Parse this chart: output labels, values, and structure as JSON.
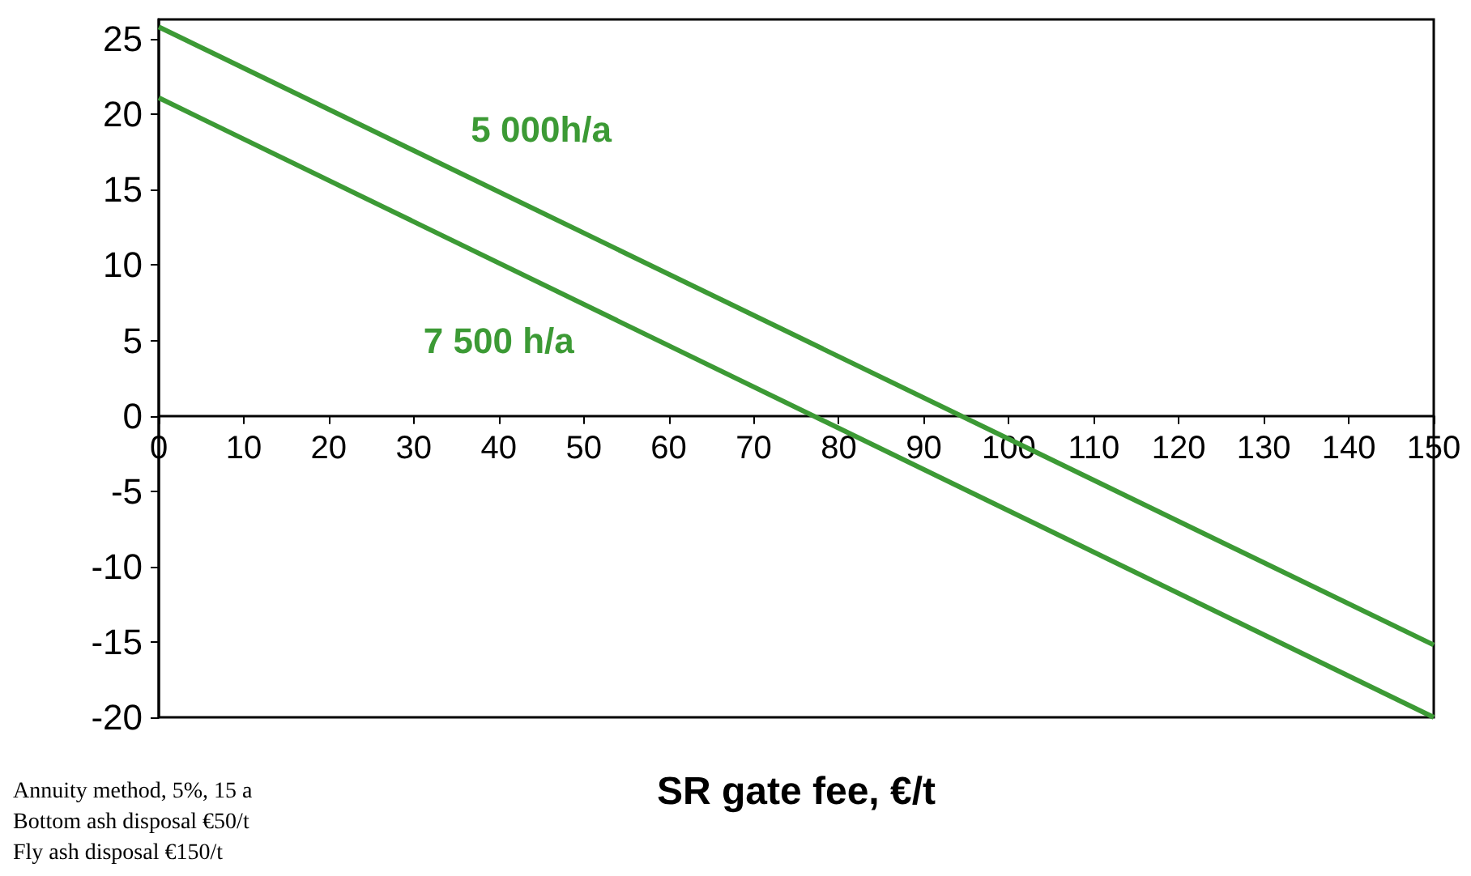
{
  "chart_data": {
    "type": "line",
    "xlabel": "SR gate fee, €/t",
    "x": [
      0,
      150
    ],
    "series": [
      {
        "name": "5 000h/a",
        "color": "#3c9a35",
        "values": [
          25.8,
          -15.2
        ]
      },
      {
        "name": "7 500 h/a",
        "color": "#3c9a35",
        "values": [
          21.1,
          -20
        ]
      }
    ],
    "xlim": [
      0,
      150
    ],
    "xticks": [
      0,
      10,
      20,
      30,
      40,
      50,
      60,
      70,
      80,
      90,
      100,
      110,
      120,
      130,
      140,
      150
    ],
    "ylim": [
      -20,
      26.3
    ],
    "yticks": [
      -20,
      -15,
      -10,
      -5,
      0,
      5,
      10,
      15,
      20,
      25
    ],
    "grid": false,
    "legend": false,
    "marker": "none",
    "line_style": "solid",
    "annotations": [
      "Annuity method, 5%, 15 a",
      "Bottom ash disposal €50/t",
      "Fly ash disposal €150/t"
    ]
  }
}
